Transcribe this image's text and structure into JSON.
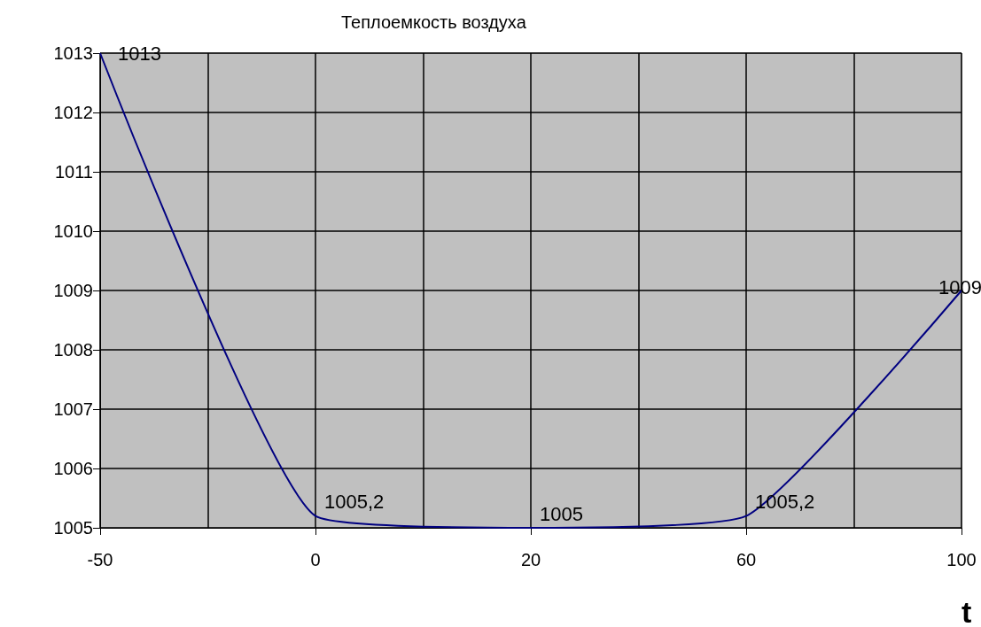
{
  "chart_data": {
    "type": "line",
    "title": "Теплоемкость воздуха",
    "xlabel": "t",
    "categories": [
      "-50",
      "0",
      "20",
      "60",
      "100"
    ],
    "series": [
      {
        "color": "#000080",
        "values": [
          1013,
          1005.2,
          1005,
          1005.2,
          1009
        ],
        "value_labels": [
          "1013",
          "1005,2",
          "1005",
          "1005,2",
          "1009"
        ]
      }
    ],
    "ylim": [
      1005,
      1013
    ],
    "yticks": [
      1005,
      1006,
      1007,
      1008,
      1009,
      1010,
      1011,
      1012,
      1013
    ],
    "grid": true,
    "marker": "none",
    "line_style": "solid"
  }
}
